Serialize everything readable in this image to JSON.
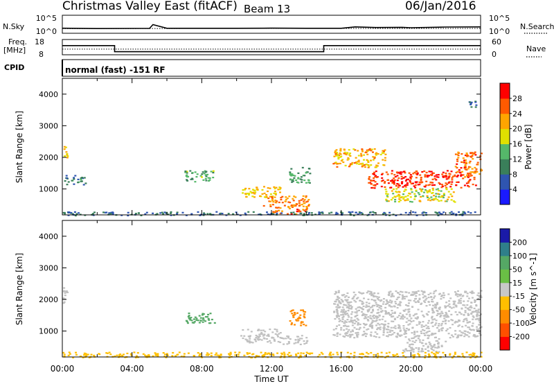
{
  "header": {
    "site": "Christmas Valley East (fitACF)",
    "beam": "Beam 13",
    "date": "06/Jan/2016"
  },
  "noise_panel": {
    "left_label": "N.Sky",
    "right_label": "N.Search",
    "left_ticks": [
      "10^5",
      "10^0"
    ],
    "right_ticks": [
      "10^5",
      "10^0"
    ]
  },
  "freq_panel": {
    "left_label_line1": "Freq.",
    "left_label_line2": "[MHz]",
    "left_ticks": [
      "18",
      "8"
    ],
    "right_label": "Nave",
    "right_ticks": [
      "60",
      "0"
    ]
  },
  "cpid": {
    "label": "CPID",
    "value": "normal (fast) -151 RF"
  },
  "colors": {
    "power": [
      "#1a1aff",
      "#2f55b0",
      "#3a7f5a",
      "#55b86a",
      "#e0e000",
      "#ffa500",
      "#ff5a00",
      "#ff0000"
    ],
    "velocity": [
      "#ff0000",
      "#ff5000",
      "#ff8c00",
      "#ffbf00",
      "#c8c8c8",
      "#6abf45",
      "#55a865",
      "#2f7f8a",
      "#1a1aa8"
    ],
    "ground_scatter": "#c0c0c0"
  },
  "chart_data": [
    {
      "type": "line",
      "title": "N.Sky / N.Search",
      "x_unit": "UT hours",
      "series": [
        {
          "name": "N.Sky",
          "x": [
            0,
            2,
            4,
            5,
            5.2,
            6,
            8,
            10,
            12,
            14,
            16,
            16.8,
            18,
            19.5,
            20,
            22,
            24
          ],
          "y": [
            25,
            20,
            22,
            22,
            250,
            24,
            24,
            24,
            26,
            24,
            24,
            60,
            40,
            45,
            35,
            55,
            60
          ]
        },
        {
          "name": "N.Search",
          "x": [
            0,
            4,
            8,
            12,
            16,
            20,
            24
          ],
          "y": [
            20,
            20,
            22,
            22,
            22,
            22,
            22
          ]
        }
      ],
      "ylog": true,
      "yticks": [
        "10^0",
        "10^5"
      ]
    },
    {
      "type": "line",
      "title": "Freq / Nave",
      "series": [
        {
          "name": "Freq [MHz]",
          "x": [
            0,
            3,
            3,
            15,
            15,
            24
          ],
          "y": [
            14,
            14,
            10,
            10,
            14,
            14
          ]
        },
        {
          "name": "Nave",
          "x": [
            0,
            24
          ],
          "y": [
            22,
            22
          ]
        }
      ],
      "ylim_left": [
        8,
        18
      ],
      "ylim_right": [
        0,
        60
      ]
    },
    {
      "type": "heatmap",
      "quantity": "Power",
      "xlabel": "",
      "ylabel": "Slant Range [km]",
      "colorbar_label": "Power [dB]",
      "colorbar_ticks": [
        "4",
        "8",
        "12",
        "16",
        "20",
        "24",
        "28"
      ],
      "colorbar_range": [
        0,
        32
      ],
      "xlim": [
        0,
        24
      ],
      "ylim": [
        180,
        4500
      ],
      "yticks": [
        "1000",
        "2000",
        "3000",
        "4000"
      ],
      "regions": [
        {
          "x": [
            0.0,
            0.3
          ],
          "y": [
            2000,
            2400
          ],
          "value": 20
        },
        {
          "x": [
            0.1,
            1.3
          ],
          "y": [
            1150,
            1450
          ],
          "value": 10
        },
        {
          "x": [
            7.0,
            8.7
          ],
          "y": [
            1250,
            1600
          ],
          "value": 13
        },
        {
          "x": [
            10.2,
            12.5
          ],
          "y": [
            750,
            1100
          ],
          "value": 20
        },
        {
          "x": [
            11.5,
            14.2
          ],
          "y": [
            400,
            800
          ],
          "value": 24
        },
        {
          "x": [
            12.0,
            14.0
          ],
          "y": [
            220,
            400
          ],
          "value": 26
        },
        {
          "x": [
            13.0,
            14.2
          ],
          "y": [
            1200,
            1700
          ],
          "value": 12
        },
        {
          "x": [
            15.5,
            18.5
          ],
          "y": [
            1700,
            2300
          ],
          "value": 22
        },
        {
          "x": [
            17.5,
            23.7
          ],
          "y": [
            1050,
            1600
          ],
          "value": 28
        },
        {
          "x": [
            18.5,
            22.5
          ],
          "y": [
            600,
            1050
          ],
          "value": 18
        },
        {
          "x": [
            22.5,
            24.0
          ],
          "y": [
            1400,
            2200
          ],
          "value": 25
        },
        {
          "x": [
            0.0,
            24.0
          ],
          "y": [
            180,
            300
          ],
          "value": 8
        },
        {
          "x": [
            23.0,
            23.7
          ],
          "y": [
            3600,
            3800
          ],
          "value": 6
        }
      ]
    },
    {
      "type": "heatmap",
      "quantity": "Velocity",
      "xlabel": "Time UT",
      "ylabel": "Slant Range [km]",
      "colorbar_label": "Velocity [m s^-1]",
      "colorbar_ticks": [
        "-200",
        "-100",
        "-50",
        "-15",
        "15",
        "50",
        "100",
        "200"
      ],
      "xlim": [
        0,
        24
      ],
      "ylim": [
        180,
        4500
      ],
      "xticks": [
        "00:00",
        "04:00",
        "08:00",
        "12:00",
        "16:00",
        "20:00",
        "00:00"
      ],
      "yticks": [
        "1000",
        "2000",
        "3000",
        "4000"
      ],
      "regions": [
        {
          "x": [
            0.0,
            0.3
          ],
          "y": [
            1800,
            2400
          ],
          "value": 0,
          "ground_scatter": true
        },
        {
          "x": [
            7.0,
            8.7
          ],
          "y": [
            1250,
            1600
          ],
          "value": 60
        },
        {
          "x": [
            10.2,
            12.5
          ],
          "y": [
            650,
            1100
          ],
          "value": 0,
          "ground_scatter": true
        },
        {
          "x": [
            12.5,
            14.0
          ],
          "y": [
            600,
            900
          ],
          "value": 0,
          "ground_scatter": true
        },
        {
          "x": [
            13.0,
            14.0
          ],
          "y": [
            1200,
            1700
          ],
          "value": -60
        },
        {
          "x": [
            15.5,
            24.0
          ],
          "y": [
            800,
            2300
          ],
          "value": 0,
          "ground_scatter": true
        },
        {
          "x": [
            19.5,
            22.0
          ],
          "y": [
            350,
            800
          ],
          "value": 0,
          "ground_scatter": true
        },
        {
          "x": [
            0.0,
            24.0
          ],
          "y": [
            180,
            350
          ],
          "value": -40
        }
      ]
    }
  ]
}
